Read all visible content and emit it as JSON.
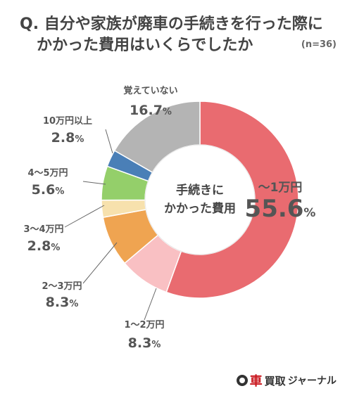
{
  "header": {
    "title_line1": "Q. 自分や家族が廃車の手続きを行った際に",
    "title_line2": "かかった費用はいくらでしたか",
    "sample": "(n=36)"
  },
  "chart_data": {
    "type": "pie",
    "donut": true,
    "center_label": [
      "手続きに",
      "かかった費用"
    ],
    "unit": "%",
    "slices": [
      {
        "label": "〜1万円",
        "value": 55.6,
        "color": "#e96b70"
      },
      {
        "label": "1〜2万円",
        "value": 8.3,
        "color": "#f9c0c3"
      },
      {
        "label": "2〜3万円",
        "value": 8.3,
        "color": "#efa451"
      },
      {
        "label": "3〜4万円",
        "value": 2.8,
        "color": "#f7e1ad"
      },
      {
        "label": "4〜5万円",
        "value": 5.6,
        "color": "#94cf6a"
      },
      {
        "label": "10万円以上",
        "value": 2.8,
        "color": "#4a7fb7"
      },
      {
        "label": "覚えていない",
        "value": 16.7,
        "color": "#b4b4b4"
      }
    ]
  },
  "logo": {
    "main": "車",
    "sub": "買取",
    "rest": "ジャーナル"
  }
}
